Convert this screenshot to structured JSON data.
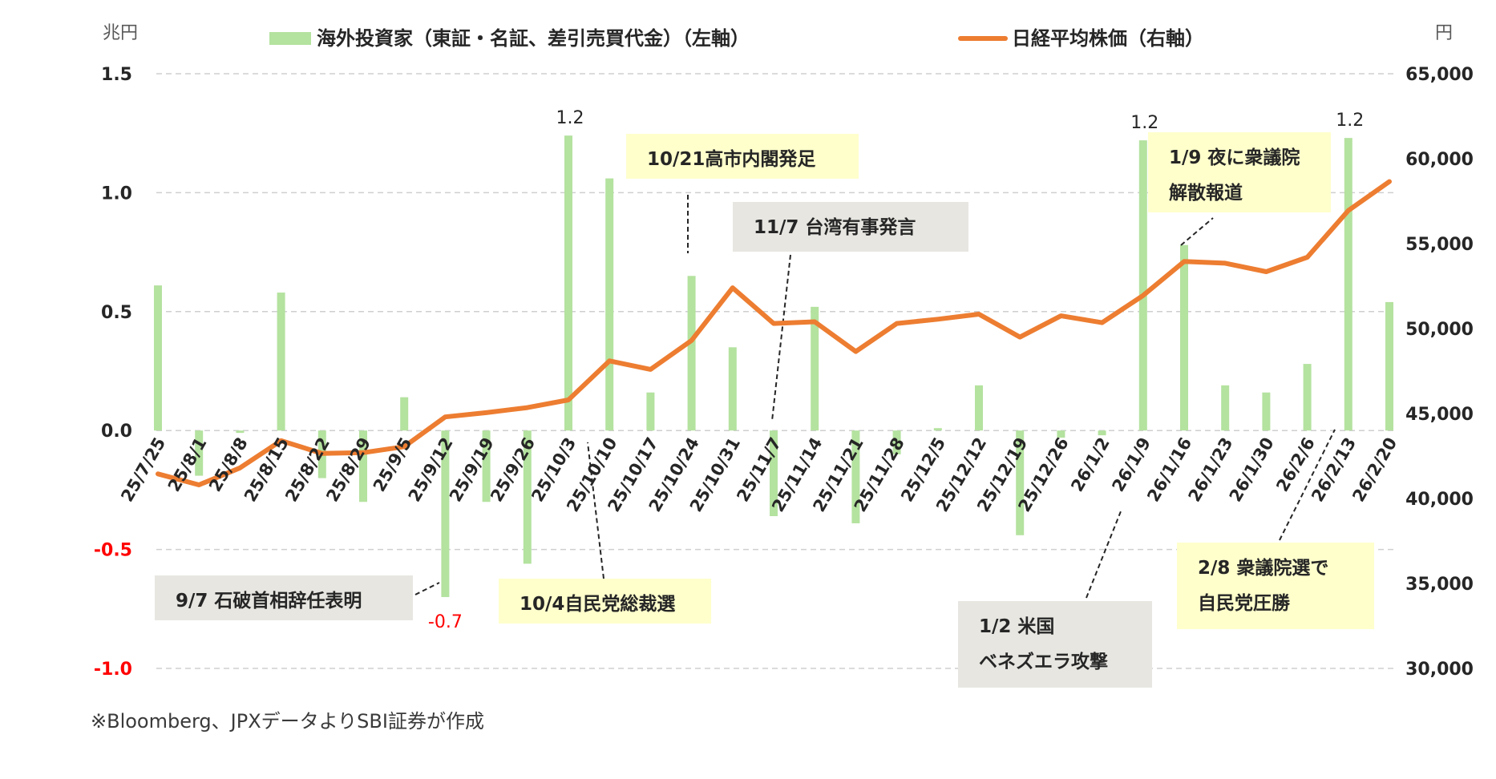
{
  "chart_data": {
    "type": "bar+line",
    "left_axis_unit": "兆円",
    "right_axis_unit": "円",
    "left_ylim": [
      -1.0,
      1.5
    ],
    "left_ticks": [
      "1.5",
      "1.0",
      "0.5",
      "0.0",
      "-0.5",
      "-1.0"
    ],
    "right_ylim": [
      30000,
      65000
    ],
    "right_ticks": [
      "65,000",
      "60,000",
      "55,000",
      "50,000",
      "45,000",
      "40,000",
      "35,000",
      "30,000"
    ],
    "grid": "dashed horizontal",
    "legend_position": "top",
    "categories": [
      "25/7/25",
      "25/8/1",
      "25/8/8",
      "25/8/15",
      "25/8/22",
      "25/8/29",
      "25/9/5",
      "25/9/12",
      "25/9/19",
      "25/9/26",
      "25/10/3",
      "25/10/10",
      "25/10/17",
      "25/10/24",
      "25/10/31",
      "25/11/7",
      "25/11/14",
      "25/11/21",
      "25/11/28",
      "25/12/5",
      "25/12/12",
      "25/12/19",
      "25/12/26",
      "26/1/2",
      "26/1/9",
      "26/1/16",
      "26/1/23",
      "26/1/30",
      "26/2/6",
      "26/2/13",
      "26/2/20"
    ],
    "series": [
      {
        "name": "海外投資家（東証・名証、差引売買代金）（左軸）",
        "axis": "left",
        "chart_type": "bar",
        "color": "#b4e29f",
        "values": [
          0.61,
          -0.19,
          -0.01,
          0.58,
          -0.2,
          -0.3,
          0.14,
          -0.7,
          -0.3,
          -0.56,
          1.24,
          1.06,
          0.16,
          0.65,
          0.35,
          -0.36,
          0.52,
          -0.39,
          -0.1,
          0.01,
          0.19,
          -0.44,
          -0.03,
          -0.02,
          1.22,
          0.78,
          0.19,
          0.16,
          0.28,
          1.23,
          0.54
        ]
      },
      {
        "name": "日経平均株価（右軸）",
        "axis": "right",
        "chart_type": "line",
        "color": "#ed7d31",
        "values": [
          41450,
          40800,
          41800,
          43400,
          42650,
          42700,
          43050,
          44800,
          45050,
          45350,
          45800,
          48100,
          47600,
          49300,
          52400,
          50300,
          50400,
          48650,
          50300,
          50550,
          50850,
          49500,
          50750,
          50350,
          51950,
          53950,
          53850,
          53350,
          54200,
          56950,
          58650
        ]
      }
    ],
    "data_labels": [
      {
        "text": "1.2",
        "category": "25/10/3"
      },
      {
        "text": "-0.7",
        "category": "25/9/12"
      },
      {
        "text": "1.2",
        "category": "26/1/9"
      },
      {
        "text": "1.2",
        "category": "26/2/13"
      }
    ]
  },
  "annotations": [
    {
      "lines": [
        "9/7 石破首相辞任表明"
      ],
      "style": "gray",
      "category": "25/9/12"
    },
    {
      "lines": [
        "10/4自民党総裁選"
      ],
      "style": "yellow",
      "category": "25/10/3"
    },
    {
      "lines": [
        "10/21高市内閣発足"
      ],
      "style": "yellow",
      "category": "25/10/24"
    },
    {
      "lines": [
        "11/7 台湾有事発言"
      ],
      "style": "gray",
      "category": "25/11/7"
    },
    {
      "lines": [
        "1/9 夜に衆議院",
        "解散報道"
      ],
      "style": "yellow",
      "category": "26/1/16"
    },
    {
      "lines": [
        "1/2 米国",
        "ベネズエラ攻撃"
      ],
      "style": "gray",
      "category": "26/1/2"
    },
    {
      "lines": [
        "2/8 衆議院選で",
        "自民党圧勝"
      ],
      "style": "yellow",
      "category": "26/2/13"
    }
  ],
  "source": "※Bloomberg、JPXデータよりSBI証券が作成",
  "colors": {
    "bar": "#b4e29f",
    "line": "#ed7d31",
    "negative_label": "#ff0000",
    "text": "#262626"
  }
}
